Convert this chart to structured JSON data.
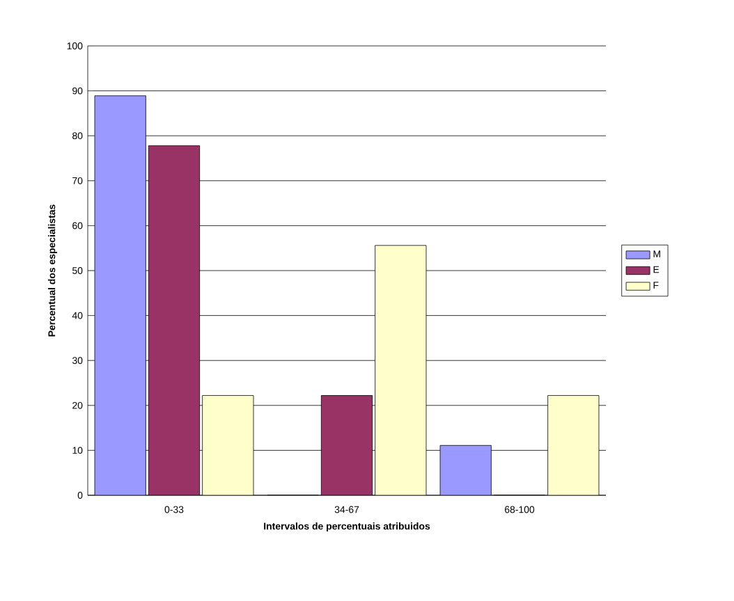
{
  "chart_data": {
    "type": "bar",
    "xlabel": "Intervalos de percentuais atribuidos",
    "ylabel": "Percentual dos especialistas",
    "categories": [
      "0-33",
      "34-67",
      "68-100"
    ],
    "series": [
      {
        "name": "M",
        "color": "#9999ff",
        "values": [
          88.9,
          0,
          11.1
        ]
      },
      {
        "name": "E",
        "color": "#993366",
        "values": [
          77.8,
          22.2,
          0
        ]
      },
      {
        "name": "F",
        "color": "#ffffcc",
        "values": [
          22.2,
          55.6,
          22.2
        ]
      }
    ],
    "ylim": [
      0,
      100
    ],
    "yticks": [
      0,
      10,
      20,
      30,
      40,
      50,
      60,
      70,
      80,
      90,
      100
    ],
    "grid": "y",
    "legend": "right"
  }
}
